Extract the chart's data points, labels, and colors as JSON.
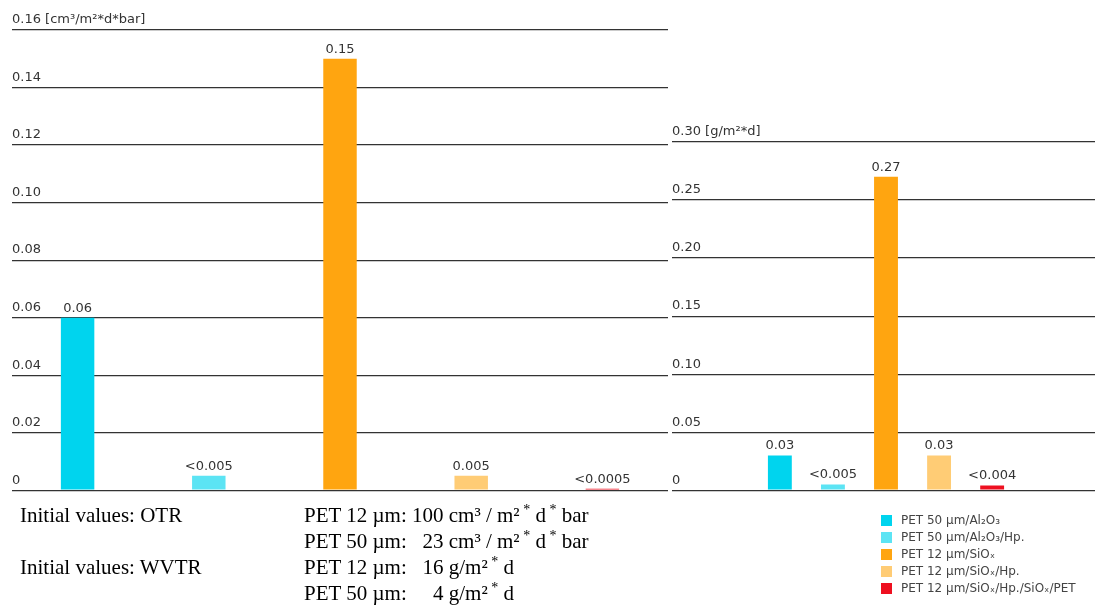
{
  "chart_data": [
    {
      "type": "bar",
      "categories": [
        null,
        null,
        null,
        null,
        null
      ],
      "values": [
        0.06,
        0.005,
        0.15,
        0.005,
        0.0005
      ],
      "colors": [
        "#00d4ee",
        "#5ce4f4",
        "#ffa510",
        "#ffcc75",
        "#ee1020"
      ],
      "value_labels": [
        "0.06",
        "<0.005",
        "0.15",
        "0.005",
        "<0.0005"
      ],
      "ylim": [
        0,
        0.16
      ],
      "yticks": [
        0,
        0.02,
        0.04,
        0.06,
        0.08,
        {
          "value": 0.1,
          "label": "0.10"
        },
        0.12,
        0.14,
        {
          "value": 0.16,
          "label": "0.16 [cm³/m²*d*bar]"
        }
      ],
      "grid": "y",
      "tick_labels": "y",
      "annotations": [
        "Initial values: OTR",
        "PET 12 µm: 100 cm³ / m²$^{ *}$ d$^{ *}$ bar",
        "PET 50 µm:   23 cm³ / m²$^{ *}$ d$^{ *}$ bar",
        "Initial values: WVTR",
        "PET 12 µm:   16 g/m²$^{ *}$ d",
        "PET 50 µm:     4 g/m²$^{ *}$ d"
      ]
    },
    {
      "type": "bar",
      "categories": [
        null
      ],
      "series": [
        {
          "name": "PET 50 µm/Al₂O₃",
          "color": "#00d4ee",
          "values": [
            0.03
          ],
          "value_labels": [
            "0.03"
          ]
        },
        {
          "name": "PET 50 µm/Al₂O₃/Hp.",
          "color": "#5ce4f4",
          "values": [
            0.005
          ],
          "value_labels": [
            "<0.005"
          ]
        },
        {
          "name": "PET 12 µm/SiOₓ",
          "color": "#ffa510",
          "values": [
            0.27
          ],
          "value_labels": [
            "0.27"
          ]
        },
        {
          "name": "PET 12 µm/SiOₓ/Hp.",
          "color": "#ffcc75",
          "values": [
            0.03
          ],
          "value_labels": [
            "0.03"
          ]
        },
        {
          "name": "PET 12 µm/SiOₓ/Hp./SiOₓ/PET",
          "color": "#ee1020",
          "values": [
            0.004
          ],
          "value_labels": [
            "<0.004"
          ]
        }
      ],
      "ylim": [
        0,
        0.3
      ],
      "yticks": [
        0,
        0.05,
        {
          "value": 0.1,
          "label": "0.10"
        },
        0.15,
        {
          "value": 0.2,
          "label": "0.20"
        },
        0.25,
        {
          "value": 0.3,
          "label": "0.30 [g/m²*d]"
        }
      ],
      "grid": "y",
      "tick_labels": "y",
      "legend": "bottom right"
    }
  ]
}
